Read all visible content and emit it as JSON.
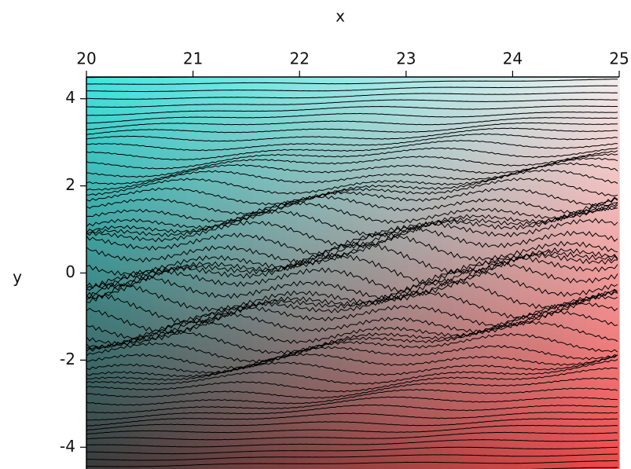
{
  "chart_data": {
    "type": "contour",
    "xlabel": "x",
    "ylabel": "y",
    "xlim": [
      20,
      25
    ],
    "ylim": [
      -4.5,
      4.5
    ],
    "xticks": [
      20,
      21,
      22,
      23,
      24,
      25
    ],
    "yticks": [
      -4,
      -2,
      0,
      2,
      4
    ],
    "corner_colors": {
      "top_left": "#3fe6e3",
      "top_right": "#f4eeee",
      "bottom_left": "#3a3a3a",
      "bottom_right": "#f04848"
    },
    "line_color": "#000000"
  }
}
